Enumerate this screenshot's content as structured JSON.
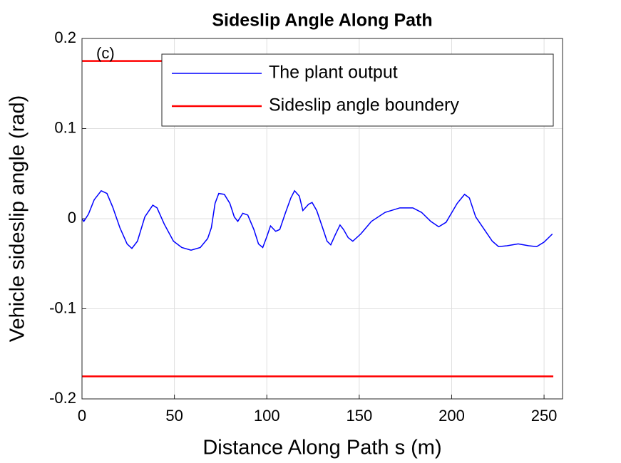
{
  "chart_data": {
    "type": "line",
    "title": "Sideslip Angle Along Path",
    "x_label": "Distance Along Path s (m)",
    "y_label": "Vehicle sideslip angle (rad)",
    "annotation": "(c)",
    "xlim": [
      0,
      260
    ],
    "xticks": [
      0,
      50,
      100,
      150,
      200,
      250
    ],
    "ylim": [
      -0.2,
      0.2
    ],
    "yticks": [
      -0.2,
      -0.1,
      0,
      0.1,
      0.2
    ],
    "grid": true,
    "legend": "top-right",
    "series": [
      {
        "name": "The plant output",
        "color": "#0000ff",
        "x": [
          0,
          1,
          3.5,
          6.6,
          10.4,
          13.5,
          16.6,
          20.5,
          24.4,
          27,
          30,
          34,
          38.3,
          40.6,
          44.5,
          49.5,
          54,
          59,
          64,
          68,
          70,
          72,
          74,
          77,
          80,
          82.4,
          84.3,
          87,
          89.7,
          93,
          95.5,
          97.8,
          100,
          102,
          104.8,
          107,
          110,
          113,
          115,
          117.6,
          119.5,
          122.6,
          124.5,
          127,
          130,
          132.6,
          134.6,
          137,
          139.6,
          141.5,
          144,
          146.5,
          150.8,
          156.6,
          164,
          172,
          179,
          183.7,
          188.7,
          193,
          197,
          203,
          207,
          209.6,
          213,
          218,
          222,
          225.4,
          230,
          236,
          241.7,
          246,
          250,
          254.5
        ],
        "values": [
          0,
          -0.003,
          0.005,
          0.021,
          0.031,
          0.028,
          0.013,
          -0.01,
          -0.028,
          -0.033,
          -0.025,
          0.002,
          0.015,
          0.012,
          -0.006,
          -0.025,
          -0.032,
          -0.035,
          -0.032,
          -0.022,
          -0.01,
          0.017,
          0.028,
          0.027,
          0.017,
          0.002,
          -0.003,
          0.006,
          0.004,
          -0.012,
          -0.028,
          -0.032,
          -0.02,
          -0.008,
          -0.014,
          -0.012,
          0.006,
          0.023,
          0.031,
          0.025,
          0.009,
          0.016,
          0.018,
          0.009,
          -0.009,
          -0.025,
          -0.029,
          -0.018,
          -0.007,
          -0.012,
          -0.021,
          -0.025,
          -0.017,
          -0.003,
          0.007,
          0.012,
          0.012,
          0.007,
          -0.003,
          -0.009,
          -0.004,
          0.017,
          0.027,
          0.023,
          0.002,
          -0.013,
          -0.025,
          -0.031,
          -0.03,
          -0.028,
          -0.03,
          -0.031,
          -0.026,
          -0.017
        ]
      },
      {
        "name": " Sideslip angle boundery",
        "color": "#ff0000",
        "x": [
          0,
          255,
          null,
          0,
          255
        ],
        "values": [
          0.175,
          0.175,
          null,
          -0.175,
          -0.175
        ]
      }
    ]
  }
}
